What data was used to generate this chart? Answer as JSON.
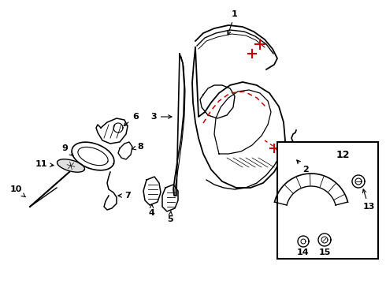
{
  "bg_color": "#ffffff",
  "line_color": "#000000",
  "red_color": "#cc0000",
  "fig_width": 4.9,
  "fig_height": 3.6,
  "dpi": 100
}
